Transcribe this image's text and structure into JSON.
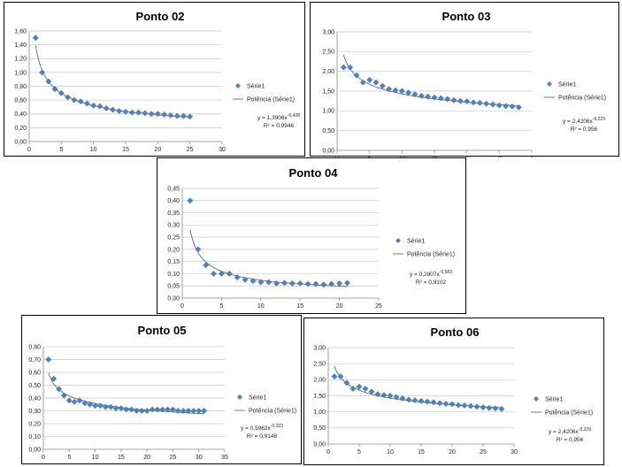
{
  "chart_data": [
    {
      "id": "p02",
      "type": "scatter",
      "title": "Ponto 02",
      "xlim": [
        0,
        30
      ],
      "xticks": [
        0,
        5,
        10,
        15,
        20,
        25,
        30
      ],
      "ylim": [
        0,
        1.6
      ],
      "yticks": [
        "0,00",
        "0,20",
        "0,40",
        "0,60",
        "0,80",
        "1,00",
        "1,20",
        "1,40",
        "1,60"
      ],
      "series": [
        {
          "name": "Série1",
          "x": [
            1,
            2,
            3,
            4,
            5,
            6,
            7,
            8,
            9,
            10,
            11,
            12,
            13,
            14,
            15,
            16,
            17,
            18,
            19,
            20,
            21,
            22,
            23,
            24,
            25
          ],
          "y": [
            1.5,
            1.0,
            0.87,
            0.76,
            0.7,
            0.64,
            0.6,
            0.58,
            0.55,
            0.52,
            0.51,
            0.48,
            0.46,
            0.44,
            0.43,
            0.42,
            0.42,
            0.41,
            0.4,
            0.4,
            0.39,
            0.38,
            0.37,
            0.37,
            0.36
          ]
        }
      ],
      "trendline": {
        "label": "Potência (Série1)",
        "a": 1.3906,
        "b": -0.428,
        "equation_base": "y = 1,3906x",
        "equation_exp": "-0,428",
        "r2": "R² = 0,9946"
      },
      "grid": true,
      "legend": "right"
    },
    {
      "id": "p03",
      "type": "scatter",
      "title": "Ponto 03",
      "xlim": [
        0,
        30
      ],
      "xticks": [
        0,
        5,
        10,
        15,
        20,
        25,
        30
      ],
      "ylim": [
        0,
        3.0
      ],
      "yticks": [
        "0,00",
        "0,50",
        "1,00",
        "1,50",
        "2,00",
        "2,50",
        "3,00"
      ],
      "series": [
        {
          "name": "Série1",
          "x": [
            1,
            2,
            3,
            4,
            5,
            6,
            7,
            8,
            9,
            10,
            11,
            12,
            13,
            14,
            15,
            16,
            17,
            18,
            19,
            20,
            21,
            22,
            23,
            24,
            25,
            26,
            27,
            28
          ],
          "y": [
            2.1,
            2.1,
            1.9,
            1.72,
            1.78,
            1.72,
            1.63,
            1.55,
            1.52,
            1.5,
            1.46,
            1.42,
            1.38,
            1.36,
            1.34,
            1.32,
            1.3,
            1.27,
            1.25,
            1.24,
            1.21,
            1.2,
            1.18,
            1.16,
            1.14,
            1.12,
            1.11,
            1.09
          ]
        }
      ],
      "trendline": {
        "label": "Potência (Série1)",
        "a": 2.4206,
        "b": -0.229,
        "equation_base": "y = 2,4206x",
        "equation_exp": "-0,229",
        "r2": "R² = 0,956"
      },
      "grid": true,
      "legend": "right"
    },
    {
      "id": "p04",
      "type": "scatter",
      "title": "Ponto 04",
      "xlim": [
        0,
        25
      ],
      "xticks": [
        0,
        5,
        10,
        15,
        20,
        25
      ],
      "ylim": [
        0,
        0.45
      ],
      "yticks": [
        "0,00",
        "0,05",
        "0,10",
        "0,15",
        "0,20",
        "0,25",
        "0,30",
        "0,35",
        "0,40",
        "0,45"
      ],
      "series": [
        {
          "name": "Série1",
          "x": [
            1,
            2,
            3,
            4,
            5,
            6,
            7,
            8,
            9,
            10,
            11,
            12,
            13,
            14,
            15,
            16,
            17,
            18,
            19,
            20,
            21
          ],
          "y": [
            0.4,
            0.2,
            0.135,
            0.1,
            0.1,
            0.1,
            0.085,
            0.075,
            0.07,
            0.065,
            0.065,
            0.06,
            0.062,
            0.06,
            0.06,
            0.058,
            0.058,
            0.055,
            0.058,
            0.06,
            0.062
          ]
        }
      ],
      "trendline": {
        "label": "Potência (Série1)",
        "a": 0.2807,
        "b": -0.583,
        "equation_base": "y = 0,2807x",
        "equation_exp": "-0,583",
        "r2": "R² = 0,9102"
      },
      "grid": true,
      "legend": "right"
    },
    {
      "id": "p05",
      "type": "scatter",
      "title": "Ponto 05",
      "xlim": [
        0,
        35
      ],
      "xticks": [
        0,
        5,
        10,
        15,
        20,
        25,
        30,
        35
      ],
      "ylim": [
        0,
        0.8
      ],
      "yticks": [
        "0,00",
        "0,10",
        "0,20",
        "0,30",
        "0,40",
        "0,50",
        "0,60",
        "0,70",
        "0,80"
      ],
      "series": [
        {
          "name": "Série1",
          "x": [
            1,
            2,
            3,
            4,
            5,
            6,
            7,
            8,
            9,
            10,
            11,
            12,
            13,
            14,
            15,
            16,
            17,
            18,
            19,
            20,
            21,
            22,
            23,
            24,
            25,
            26,
            27,
            28,
            29,
            30,
            31
          ],
          "y": [
            0.7,
            0.55,
            0.47,
            0.42,
            0.38,
            0.37,
            0.38,
            0.36,
            0.35,
            0.34,
            0.34,
            0.33,
            0.33,
            0.32,
            0.32,
            0.31,
            0.31,
            0.3,
            0.3,
            0.3,
            0.31,
            0.31,
            0.31,
            0.31,
            0.31,
            0.3,
            0.3,
            0.3,
            0.3,
            0.3,
            0.3
          ]
        }
      ],
      "trendline": {
        "label": "Potência (Série1)",
        "a": 0.5962,
        "b": -0.223,
        "equation_base": "y = 0,5962x",
        "equation_exp": "-0,223",
        "r2": "R² = 0,9148"
      },
      "grid": true,
      "legend": "right"
    },
    {
      "id": "p06",
      "type": "scatter",
      "title": "Ponto 06",
      "xlim": [
        0,
        30
      ],
      "xticks": [
        0,
        5,
        10,
        15,
        20,
        25,
        30
      ],
      "ylim": [
        0,
        3.0
      ],
      "yticks": [
        "0,00",
        "0,50",
        "1,00",
        "1,50",
        "2,00",
        "2,50",
        "3,00"
      ],
      "series": [
        {
          "name": "Série1",
          "x": [
            1,
            2,
            3,
            4,
            5,
            6,
            7,
            8,
            9,
            10,
            11,
            12,
            13,
            14,
            15,
            16,
            17,
            18,
            19,
            20,
            21,
            22,
            23,
            24,
            25,
            26,
            27,
            28
          ],
          "y": [
            2.1,
            2.1,
            1.9,
            1.72,
            1.78,
            1.72,
            1.63,
            1.55,
            1.52,
            1.5,
            1.46,
            1.42,
            1.38,
            1.36,
            1.34,
            1.32,
            1.3,
            1.27,
            1.25,
            1.24,
            1.21,
            1.2,
            1.18,
            1.16,
            1.14,
            1.12,
            1.11,
            1.09
          ]
        }
      ],
      "trendline": {
        "label": "Potência (Série1)",
        "a": 2.4206,
        "b": -0.229,
        "equation_base": "y = 2,4206x",
        "equation_exp": "-0,229",
        "r2": "R² = 0,956"
      },
      "grid": true,
      "legend": "right"
    }
  ],
  "colors": {
    "marker": "#4f81bd",
    "trend": "#555555",
    "border": "#000000"
  }
}
